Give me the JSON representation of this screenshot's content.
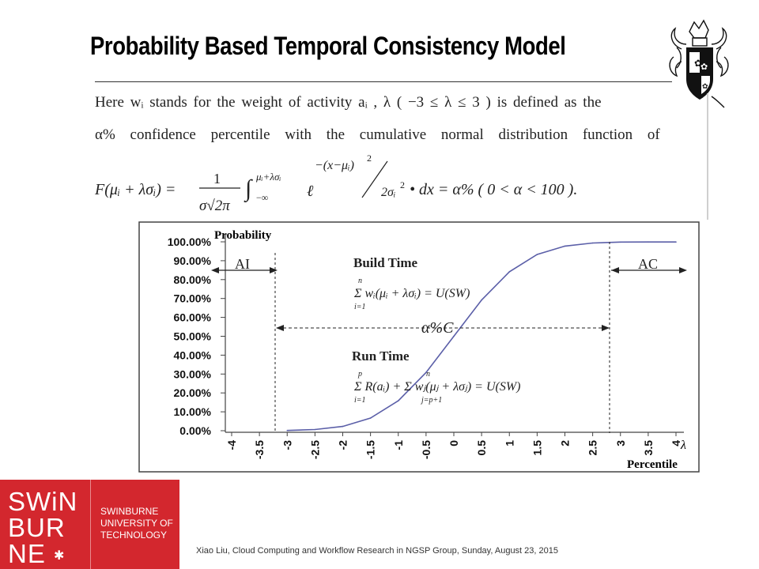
{
  "slide": {
    "title": "Probability Based Temporal Consistency Model",
    "footer": "Xiao Liu, Cloud Computing and Workflow Research in NGSP Group, Sunday, August 23, 2015"
  },
  "definition": {
    "line1": "Here wᵢ stands for the weight of activity aᵢ , λ ( −3 ≤ λ ≤ 3 ) is defined as the",
    "line2": "α% confidence percentile with the cumulative normal distribution function of",
    "formula_lhs": "F(μᵢ + λσᵢ) =",
    "formula_num": "1",
    "formula_den": "σ√2π",
    "formula_int": "∫",
    "formula_upper": "μᵢ+λσᵢ",
    "formula_lower": "−∞",
    "formula_e": "ℓ",
    "formula_exp_num": "−(x−μᵢ)",
    "formula_exp_num_pow": "2",
    "formula_exp_den": "2σᵢ",
    "formula_exp_den_pow": "2",
    "formula_rhs": "• dx = α% ( 0 < α < 100 )."
  },
  "logo": {
    "word1": "SWiN",
    "word2": "BUR",
    "word3": "NE",
    "line1": "SWINBURNE",
    "line2": "UNIVERSITY OF",
    "line3": "TECHNOLOGY",
    "bg_color": "#d3272e"
  },
  "chart_data": {
    "type": "line",
    "ylabel": "Probability",
    "xlabel": "Percentile",
    "x_axis_symbol": "λ",
    "x_tick_labels": [
      "-4",
      "-3.5",
      "-3",
      "-2.5",
      "-2",
      "-1.5",
      "-1",
      "-0.5",
      "0",
      "0.5",
      "1",
      "1.5",
      "2",
      "2.5",
      "3",
      "3.5",
      "4"
    ],
    "y_tick_labels": [
      "0.00%",
      "10.00%",
      "20.00%",
      "30.00%",
      "40.00%",
      "50.00%",
      "60.00%",
      "70.00%",
      "80.00%",
      "90.00%",
      "100.00%"
    ],
    "xlim": [
      -4,
      4
    ],
    "ylim": [
      0,
      100
    ],
    "series": [
      {
        "x": [
          -3,
          -2.5,
          -2,
          -1.5,
          -1,
          -0.5,
          0,
          0.5,
          1,
          1.5,
          2,
          2.5,
          3,
          3.5,
          4
        ],
        "values": [
          0.13,
          0.62,
          2.28,
          6.68,
          15.87,
          30.85,
          50,
          69.15,
          84.13,
          93.32,
          97.72,
          99.38,
          99.87,
          99.9,
          99.9
        ],
        "color": "#5b5fa8"
      }
    ],
    "grid": false,
    "annotations": {
      "ai": "AI",
      "ac": "AC",
      "confidence": "α%C",
      "build_time": "Build Time",
      "build_formula": "Σ wᵢ(μᵢ + λσᵢ) = U(SW)",
      "build_sum_top": "n",
      "build_sum_bottom": "i=1",
      "run_time": "Run Time",
      "run_formula": "Σ R(aᵢ) + Σ wⱼ(μⱼ + λσⱼ) = U(SW)",
      "run_sum1_top": "p",
      "run_sum1_bottom": "i=1",
      "run_sum2_top": "n",
      "run_sum2_bottom": "j=p+1"
    }
  }
}
